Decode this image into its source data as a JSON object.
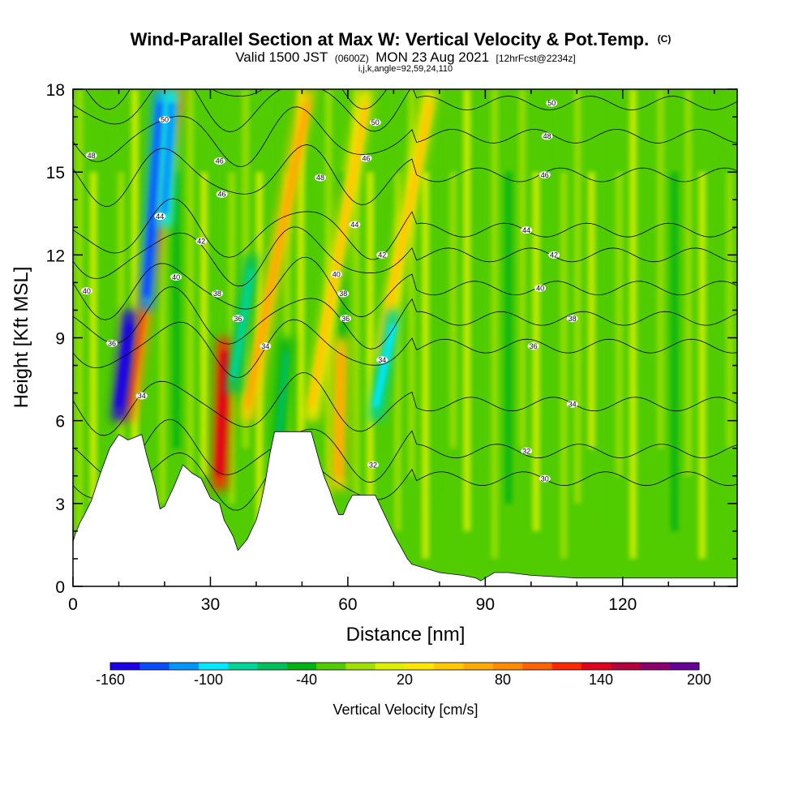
{
  "chart_data": {
    "type": "heatmap",
    "title": "Wind-Parallel Section at Max W: Vertical Velocity & Pot.Temp.",
    "title_mark": "(C)",
    "subtitle_parts": [
      "Valid 1500 JST",
      "(0600Z)",
      "MON 23 Aug 2021",
      "[12hrFcst@2234z]"
    ],
    "info": "i,j,k,angle=92,59,24,110",
    "xlabel": "Distance [nm]",
    "ylabel": "Height [Kft MSL]",
    "xlim": [
      0,
      145
    ],
    "ylim": [
      0,
      18
    ],
    "xticks": [
      0,
      30,
      60,
      90,
      120
    ],
    "yticks": [
      0,
      3,
      6,
      9,
      12,
      15,
      18
    ],
    "colorbar": {
      "label": "Vertical Velocity [cm/s]",
      "tick_labels": [
        -160,
        -100,
        -40,
        20,
        80,
        140,
        200
      ],
      "min": -160,
      "max": 200,
      "step": 20,
      "colors": [
        "#1c00e8",
        "#0a4cff",
        "#0096ff",
        "#00e8ff",
        "#00d496",
        "#00c05a",
        "#00b214",
        "#50cc00",
        "#a0e000",
        "#dcf000",
        "#ffe600",
        "#ffc800",
        "#ffaa00",
        "#ff8c00",
        "#ff6400",
        "#ff2800",
        "#e1001e",
        "#b4003c",
        "#8c006e",
        "#640096"
      ]
    },
    "terrain_profile": {
      "x_nm": [
        0,
        0.5,
        1.5,
        2.5,
        4,
        5,
        6,
        8,
        10,
        12,
        15,
        16,
        17,
        18,
        19,
        20,
        22,
        24,
        26,
        28,
        30,
        32,
        33,
        35,
        36,
        38,
        40,
        41,
        42,
        43,
        44,
        45,
        46,
        48,
        50,
        52,
        53,
        54,
        55,
        56,
        57,
        58,
        59,
        60,
        61,
        62,
        64,
        66,
        68,
        70,
        71,
        72,
        73,
        74,
        76,
        80,
        85,
        88,
        89,
        90,
        92,
        95,
        100,
        110,
        120,
        130,
        140,
        145
      ],
      "z_kft": [
        1.6,
        1.9,
        2.3,
        2.6,
        3.1,
        3.6,
        4.1,
        5.0,
        5.5,
        5.3,
        5.5,
        4.8,
        4.2,
        3.6,
        2.8,
        2.9,
        3.6,
        4.4,
        4.1,
        3.9,
        3.2,
        3.0,
        2.4,
        1.8,
        1.3,
        1.7,
        2.4,
        3.0,
        3.8,
        4.8,
        5.6,
        5.6,
        5.6,
        5.6,
        5.6,
        5.6,
        5.0,
        4.4,
        3.9,
        3.5,
        3.0,
        2.6,
        2.6,
        3.0,
        3.3,
        3.3,
        3.3,
        3.3,
        2.6,
        1.9,
        1.6,
        1.3,
        1.0,
        0.8,
        0.7,
        0.5,
        0.4,
        0.3,
        0.2,
        0.3,
        0.5,
        0.5,
        0.4,
        0.3,
        0.3,
        0.3,
        0.3,
        0.3
      ]
    },
    "updraft_columns": [
      {
        "x_nm": 12,
        "z_bottom_kft": 6,
        "z_top_kft": 18,
        "w_cm_s": 100,
        "tilt": -0.45
      },
      {
        "x_nm": 32,
        "z_bottom_kft": 3.5,
        "z_top_kft": 9,
        "w_cm_s": 140,
        "tilt": -0.1
      },
      {
        "x_nm": 38,
        "z_bottom_kft": 6,
        "z_top_kft": 18,
        "w_cm_s": 60,
        "tilt": -0.55
      },
      {
        "x_nm": 52,
        "z_bottom_kft": 6,
        "z_top_kft": 18,
        "w_cm_s": 50,
        "tilt": -0.5
      },
      {
        "x_nm": 58,
        "z_bottom_kft": 3.5,
        "z_top_kft": 9,
        "w_cm_s": 70,
        "tilt": -0.05
      },
      {
        "x_nm": 67,
        "z_bottom_kft": 8,
        "z_top_kft": 18,
        "w_cm_s": 40,
        "tilt": -0.55
      }
    ],
    "downdraft_columns": [
      {
        "x_nm": 10,
        "z_bottom_kft": 6,
        "z_top_kft": 10,
        "w_cm_s": -160,
        "tilt": -0.3
      },
      {
        "x_nm": 16,
        "z_bottom_kft": 10,
        "z_top_kft": 18,
        "w_cm_s": -120,
        "tilt": -0.2
      },
      {
        "x_nm": 20,
        "z_bottom_kft": 13,
        "z_top_kft": 18,
        "w_cm_s": -100,
        "tilt": -0.15
      },
      {
        "x_nm": 35,
        "z_bottom_kft": 7,
        "z_top_kft": 12,
        "w_cm_s": -60,
        "tilt": -0.4
      },
      {
        "x_nm": 45,
        "z_bottom_kft": 5,
        "z_top_kft": 9,
        "w_cm_s": -40,
        "tilt": -0.2
      },
      {
        "x_nm": 66,
        "z_bottom_kft": 6,
        "z_top_kft": 10,
        "w_cm_s": -80,
        "tilt": -0.5
      }
    ],
    "contour_labels": [
      {
        "text": "48",
        "x": 4,
        "z": 15.6
      },
      {
        "text": "40",
        "x": 3,
        "z": 10.7
      },
      {
        "text": "36",
        "x": 8.5,
        "z": 8.8
      },
      {
        "text": "34",
        "x": 15,
        "z": 6.9
      },
      {
        "text": "50",
        "x": 20,
        "z": 16.9
      },
      {
        "text": "44",
        "x": 19,
        "z": 13.4
      },
      {
        "text": "42",
        "x": 28,
        "z": 12.5
      },
      {
        "text": "40",
        "x": 22.5,
        "z": 11.2
      },
      {
        "text": "46",
        "x": 32,
        "z": 15.4
      },
      {
        "text": "46",
        "x": 32.5,
        "z": 14.2
      },
      {
        "text": "38",
        "x": 31.5,
        "z": 10.6
      },
      {
        "text": "36",
        "x": 36,
        "z": 9.7
      },
      {
        "text": "34",
        "x": 42,
        "z": 8.7
      },
      {
        "text": "48",
        "x": 54,
        "z": 14.8
      },
      {
        "text": "50",
        "x": 66,
        "z": 16.8
      },
      {
        "text": "46",
        "x": 64,
        "z": 15.5
      },
      {
        "text": "44",
        "x": 61.5,
        "z": 13.1
      },
      {
        "text": "42",
        "x": 67.5,
        "z": 12.0
      },
      {
        "text": "40",
        "x": 57.5,
        "z": 11.3
      },
      {
        "text": "38",
        "x": 59,
        "z": 10.6
      },
      {
        "text": "36",
        "x": 59.5,
        "z": 9.7
      },
      {
        "text": "34",
        "x": 67.5,
        "z": 8.2
      },
      {
        "text": "32",
        "x": 65.5,
        "z": 4.4
      },
      {
        "text": "50",
        "x": 104.5,
        "z": 17.5
      },
      {
        "text": "48",
        "x": 103.5,
        "z": 16.3
      },
      {
        "text": "46",
        "x": 103,
        "z": 14.9
      },
      {
        "text": "44",
        "x": 99,
        "z": 12.9
      },
      {
        "text": "42",
        "x": 105,
        "z": 12.0
      },
      {
        "text": "40",
        "x": 102,
        "z": 10.8
      },
      {
        "text": "38",
        "x": 109,
        "z": 9.7
      },
      {
        "text": "36",
        "x": 100.5,
        "z": 8.7
      },
      {
        "text": "34",
        "x": 109,
        "z": 6.6
      },
      {
        "text": "32",
        "x": 99,
        "z": 4.9
      },
      {
        "text": "30",
        "x": 103,
        "z": 3.9
      }
    ]
  }
}
